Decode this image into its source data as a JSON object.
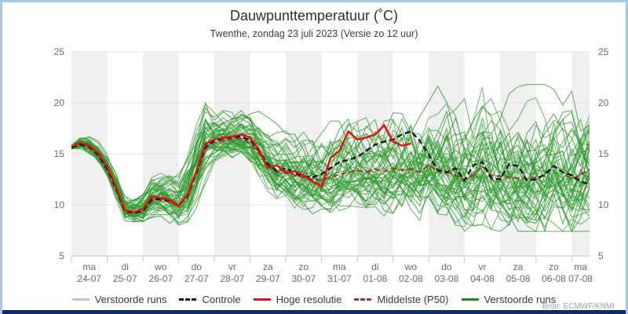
{
  "header": {
    "title": "Dauwpunttemperatuur (˚C)",
    "subtitle": "Twenthe, zondag 23 juli 2023 (Versie zo 12 uur)"
  },
  "source_note": "Bron: ECMWF/KNMI",
  "colors": {
    "frame_border": "#a9c6e6",
    "bottom_bar": "#0d2c6e",
    "band_gray": "#f0f0f0",
    "gridline": "#e4e4e6",
    "axis_blue": "#b9c8e2",
    "tick_text": "#6b6b6b",
    "ensemble_green": "#2e9b2e",
    "control_black": "#141414",
    "hires_red": "#e11212",
    "median_darkred": "#a83434",
    "light_green": "#b8d4b4",
    "dark_green": "#1f8a1f"
  },
  "legend": {
    "items": [
      {
        "label": "Verstoorde runs",
        "color": "#b8d4b4",
        "style": "solid"
      },
      {
        "label": "Controle",
        "color": "#141414",
        "style": "dashed"
      },
      {
        "label": "Hoge resolutie",
        "color": "#e11212",
        "style": "solid"
      },
      {
        "label": "Middelste (P50)",
        "color": "#a83434",
        "style": "dashed"
      },
      {
        "label": "Verstoorde runs",
        "color": "#1f8a1f",
        "style": "solid"
      }
    ]
  },
  "chart_data": {
    "type": "line",
    "title": "Dauwpunttemperatuur (˚C)",
    "subtitle": "Twenthe, zondag 23 juli 2023 (Versie zo 12 uur)",
    "ylabel": "",
    "ylim": [
      5,
      25
    ],
    "yticks": [
      5,
      10,
      15,
      20,
      25
    ],
    "grid": "horizontal",
    "legend_position": "bottom",
    "x_step_days": 0.25,
    "x_total_days": 14.5,
    "day_labels": [
      {
        "day": "ma",
        "date": "24-07"
      },
      {
        "day": "di",
        "date": "25-07"
      },
      {
        "day": "wo",
        "date": "26-07"
      },
      {
        "day": "do",
        "date": "27-07"
      },
      {
        "day": "vr",
        "date": "28-07"
      },
      {
        "day": "za",
        "date": "29-07"
      },
      {
        "day": "zo",
        "date": "30-07"
      },
      {
        "day": "ma",
        "date": "31-07"
      },
      {
        "day": "di",
        "date": "01-08"
      },
      {
        "day": "wo",
        "date": "02-08"
      },
      {
        "day": "do",
        "date": "03-08"
      },
      {
        "day": "vr",
        "date": "04-08"
      },
      {
        "day": "za",
        "date": "05-08"
      },
      {
        "day": "zo",
        "date": "06-08"
      },
      {
        "day": "ma",
        "date": "07-08"
      }
    ],
    "series": [
      {
        "name": "Controle",
        "style": "dashed",
        "color": "#141414",
        "width": 2.3,
        "values": [
          15.6,
          15.9,
          15.7,
          14.9,
          13.5,
          11.6,
          9.4,
          9.2,
          9.4,
          10.5,
          10.6,
          10.4,
          10.0,
          10.9,
          13.1,
          15.7,
          16.3,
          16.5,
          16.6,
          16.7,
          16.3,
          15.3,
          14.0,
          13.3,
          13.6,
          13.1,
          12.8,
          12.7,
          13.0,
          13.6,
          14.2,
          14.4,
          14.7,
          15.3,
          15.9,
          16.2,
          16.4,
          16.9,
          17.2,
          16.3,
          14.9,
          13.4,
          13.2,
          13.6,
          12.4,
          13.9,
          14.2,
          12.6,
          12.5,
          14.0,
          13.8,
          12.4,
          12.5,
          13.0,
          13.8,
          13.2,
          12.9,
          12.3,
          12.0
        ]
      },
      {
        "name": "Hoge resolutie",
        "style": "solid",
        "color": "#e11212",
        "width": 2.5,
        "values": [
          15.7,
          16.1,
          15.8,
          15.1,
          13.8,
          11.8,
          9.5,
          9.3,
          9.6,
          10.8,
          10.7,
          10.5,
          9.9,
          11.0,
          13.3,
          16.0,
          16.4,
          16.6,
          16.7,
          16.9,
          16.6,
          15.4,
          13.6,
          13.9,
          13.1,
          13.3,
          12.9,
          12.3,
          11.8,
          14.6,
          15.3,
          17.2,
          16.4,
          16.6,
          16.9,
          17.8,
          16.2,
          15.8,
          16.0
        ]
      },
      {
        "name": "Middelste (P50)",
        "style": "dashed",
        "color": "#a83434",
        "width": 2.0,
        "values": [
          15.6,
          15.9,
          15.6,
          14.8,
          13.4,
          11.5,
          9.3,
          9.2,
          9.4,
          10.4,
          10.5,
          10.3,
          9.9,
          10.8,
          13.0,
          15.5,
          16.1,
          16.3,
          16.4,
          16.5,
          16.0,
          15.0,
          13.9,
          13.2,
          13.3,
          12.9,
          12.7,
          12.5,
          12.4,
          12.7,
          13.0,
          13.2,
          13.4,
          13.2,
          13.5,
          13.3,
          13.6,
          13.4,
          13.5,
          13.2,
          13.9,
          13.3,
          13.2,
          12.9,
          12.5,
          12.9,
          13.8,
          12.9,
          12.8,
          12.7,
          12.6,
          12.5,
          12.7,
          12.9,
          13.8,
          13.2,
          12.5,
          13.0,
          13.4
        ]
      }
    ],
    "ensemble": {
      "name": "Verstoorde runs",
      "count": 50,
      "color": "#2e9b2e",
      "base_series": "Middelste (P50)",
      "value_range": [
        7.4,
        21.8
      ],
      "spread": [
        0.25,
        0.4,
        0.5,
        0.55,
        0.6,
        0.7,
        0.8,
        0.8,
        0.9,
        1.0,
        1.1,
        1.2,
        1.3,
        1.5,
        1.8,
        1.8,
        1.2,
        1.1,
        1.2,
        1.3,
        1.4,
        1.5,
        1.6,
        1.7,
        1.8,
        1.9,
        2.0,
        2.0,
        2.1,
        2.2,
        2.2,
        2.3,
        2.3,
        2.4,
        2.4,
        2.5,
        2.5,
        2.6,
        2.6,
        2.7,
        2.7,
        2.8,
        2.8,
        2.9,
        2.9,
        3.0,
        3.0,
        3.0,
        3.1,
        3.1,
        3.1,
        3.2,
        3.2,
        3.2,
        3.3,
        3.3,
        3.3,
        3.4,
        3.4
      ]
    }
  }
}
